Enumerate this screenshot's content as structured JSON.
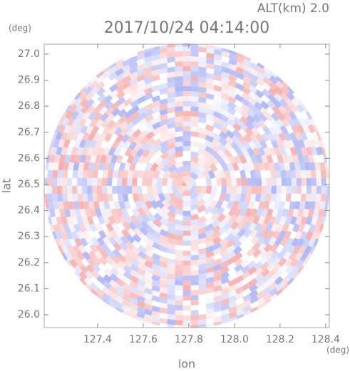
{
  "chart_data": {
    "type": "radar-field",
    "title": "2017/10/24 04:14:00",
    "subtitle": "ALT(km) 2.0",
    "x_label": "lon",
    "y_label": "lat",
    "x_unit": "(deg)",
    "y_unit": "(deg)",
    "xlim": [
      127.166,
      128.416
    ],
    "ylim": [
      25.951,
      27.038
    ],
    "xticks": [
      127.4,
      127.6,
      127.8,
      {
        "value": 128.0,
        "label": "128.0"
      },
      128.2,
      128.4
    ],
    "yticks": [
      {
        "value": 26.0,
        "label": "26.0"
      },
      26.1,
      26.2,
      26.3,
      26.4,
      26.5,
      26.6,
      26.7,
      26.8,
      26.9,
      {
        "value": 27.0,
        "label": "27.0"
      }
    ]
  }
}
